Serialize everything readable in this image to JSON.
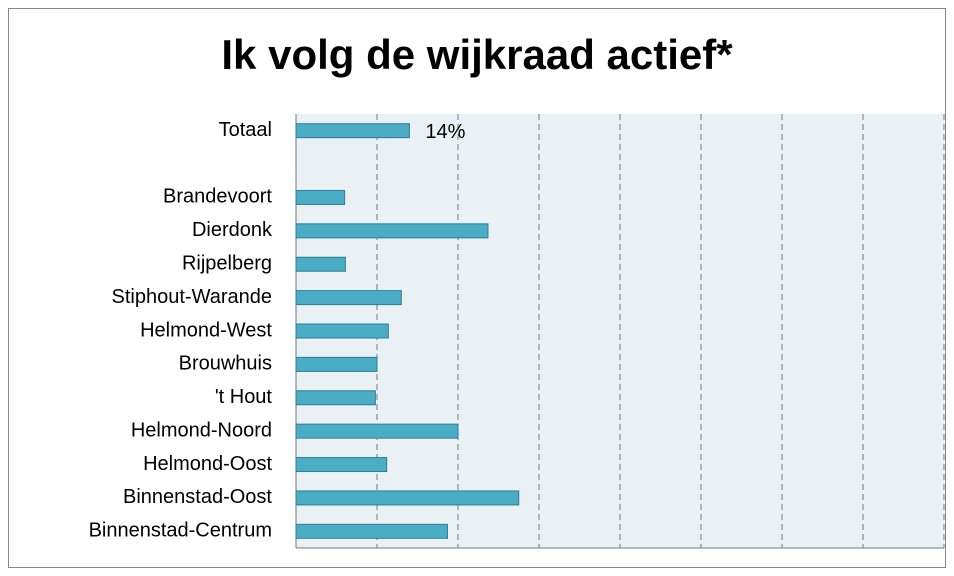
{
  "chart_data": {
    "type": "barh",
    "title": "Ik volg de wijkraad actief*",
    "categories": [
      "Totaal",
      null,
      "Brandevoort",
      "Dierdonk",
      "Rijpelberg",
      "Stiphout-Warande",
      "Helmond-West",
      "Brouwhuis",
      "'t Hout",
      "Helmond-Noord",
      "Helmond-Oost",
      "Binnenstad-Oost",
      "Binnenstad-Centrum"
    ],
    "values": [
      14,
      null,
      6.0,
      23.7,
      6.1,
      13.0,
      11.4,
      10.0,
      9.8,
      20.0,
      11.2,
      27.5,
      18.7
    ],
    "value_labels": [
      "14%",
      null,
      null,
      null,
      null,
      null,
      null,
      null,
      null,
      null,
      null,
      null,
      null
    ],
    "color": "#4bacc6",
    "xlim": [
      0,
      80
    ],
    "xticks": [
      0,
      10,
      20,
      30,
      40,
      50,
      60,
      70,
      80
    ],
    "grid": true
  }
}
